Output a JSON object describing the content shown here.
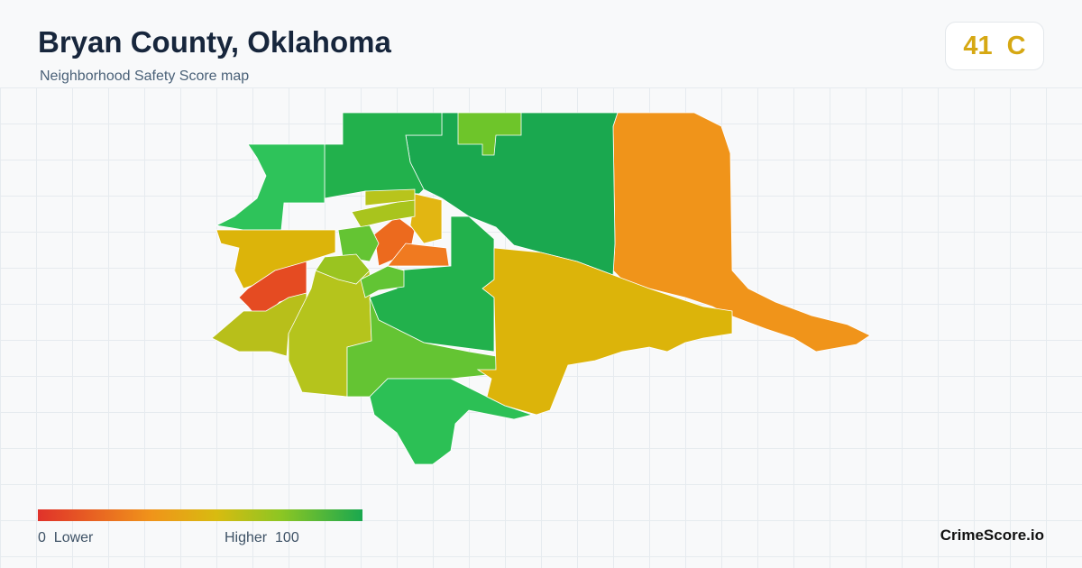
{
  "header": {
    "title": "Bryan County, Oklahoma",
    "subtitle": "Neighborhood Safety Score map"
  },
  "score": {
    "value": 41,
    "grade": "C"
  },
  "legend": {
    "min": 0,
    "min_label": "Lower",
    "max_label": "Higher",
    "max": 100
  },
  "brand": "CrimeScore.io"
}
